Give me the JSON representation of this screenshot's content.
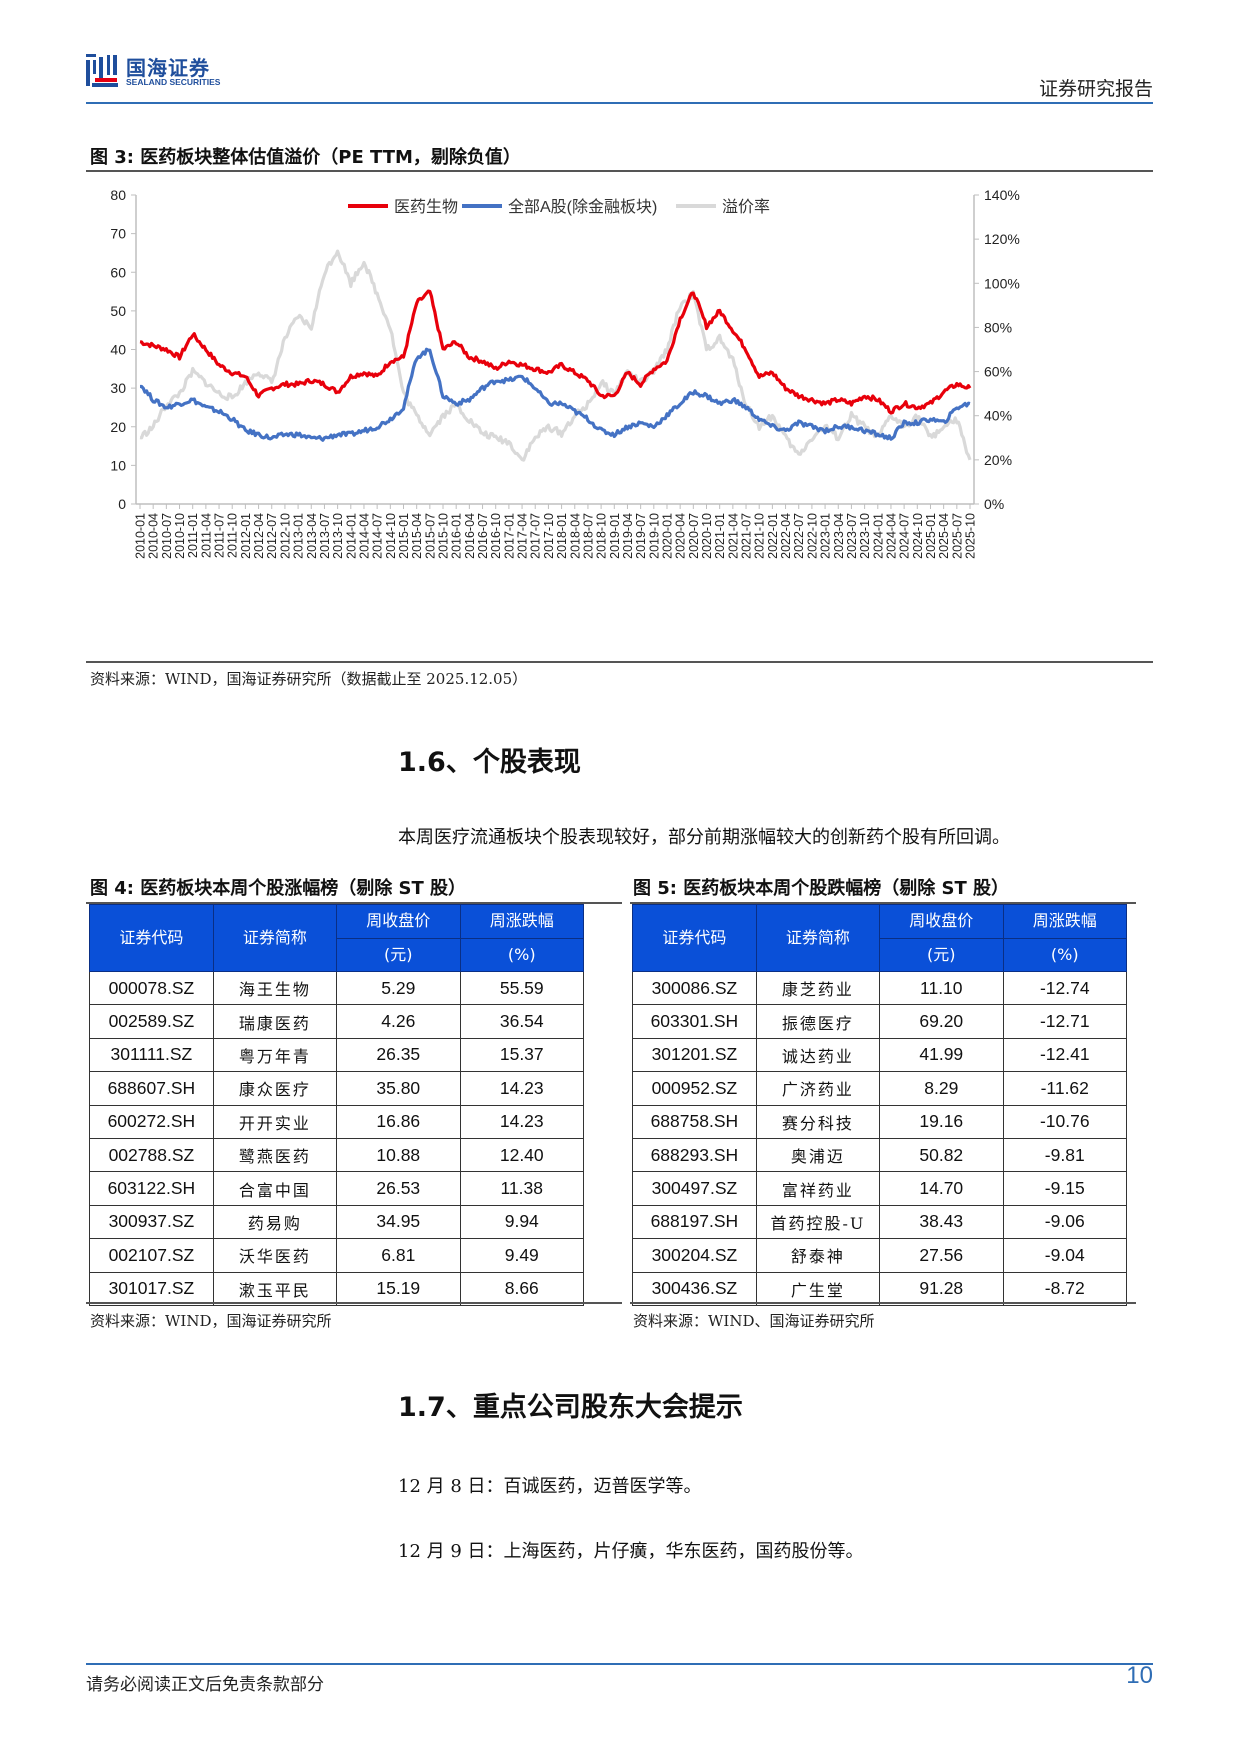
{
  "header": {
    "logo_cn": "国海证券",
    "logo_en": "SEALAND SECURITIES",
    "report_type": "证券研究报告",
    "brand_color": "#1f4e9c",
    "rule_color": "#2f6db5"
  },
  "figure3": {
    "title": "图 3:  医药板块整体估值溢价（PE TTM，剔除负值）",
    "source": "资料来源：WIND，国海证券研究所（数据截止至 2025.12.05）"
  },
  "chart_data": {
    "type": "line",
    "title": "医药板块整体估值溢价（PE TTM，剔除负值）",
    "xlabel": "",
    "ylabel_left": "PE TTM",
    "ylabel_right": "溢价率",
    "ylim_left": [
      0,
      80
    ],
    "ylim_right": [
      0,
      1.4
    ],
    "yticks_left": [
      "0",
      "10",
      "20",
      "30",
      "40",
      "50",
      "60",
      "70",
      "80"
    ],
    "yticks_right": [
      "0%",
      "20%",
      "40%",
      "60%",
      "80%",
      "100%",
      "120%",
      "140%"
    ],
    "grid": false,
    "legend_position": "top-center",
    "x": [
      "2010-01",
      "2010-04",
      "2010-07",
      "2010-10",
      "2011-01",
      "2011-04",
      "2011-07",
      "2011-10",
      "2012-01",
      "2012-04",
      "2012-07",
      "2012-10",
      "2013-01",
      "2013-04",
      "2013-07",
      "2013-10",
      "2014-01",
      "2014-04",
      "2014-07",
      "2014-10",
      "2015-01",
      "2015-04",
      "2015-07",
      "2015-10",
      "2016-01",
      "2016-04",
      "2016-07",
      "2016-10",
      "2017-01",
      "2017-04",
      "2017-07",
      "2017-10",
      "2018-01",
      "2018-04",
      "2018-07",
      "2018-10",
      "2019-01",
      "2019-04",
      "2019-07",
      "2019-10",
      "2020-01",
      "2020-04",
      "2020-07",
      "2020-10",
      "2021-01",
      "2021-04",
      "2021-07",
      "2021-10",
      "2022-01",
      "2022-04",
      "2022-07",
      "2022-10",
      "2023-01",
      "2023-04",
      "2023-07",
      "2023-10",
      "2024-01",
      "2024-04",
      "2024-07",
      "2024-10",
      "2025-01",
      "2025-04",
      "2025-07",
      "2025-10"
    ],
    "series": [
      {
        "name": "医药生物",
        "axis": "left",
        "color": "#e8000b",
        "values": [
          42,
          41,
          40,
          38,
          44,
          40,
          36,
          34,
          33,
          28,
          30,
          31,
          31,
          32,
          31,
          29,
          33,
          34,
          33,
          37,
          38,
          52,
          55,
          40,
          42,
          38,
          37,
          35,
          37,
          36,
          35,
          34,
          36,
          34,
          32,
          28,
          28,
          34,
          31,
          35,
          37,
          48,
          55,
          46,
          50,
          45,
          40,
          33,
          34,
          30,
          28,
          27,
          26,
          27,
          26,
          28,
          27,
          24,
          26,
          25,
          26,
          29,
          31,
          30
        ]
      },
      {
        "name": "全部A股(除金融板块)",
        "axis": "left",
        "color": "#4472c4",
        "values": [
          31,
          27,
          25,
          26,
          27,
          25,
          24,
          22,
          19,
          18,
          17,
          18,
          18,
          17,
          17,
          18,
          18,
          19,
          20,
          22,
          25,
          38,
          40,
          28,
          26,
          27,
          30,
          32,
          32,
          33,
          30,
          26,
          26,
          24,
          22,
          19,
          18,
          20,
          21,
          20,
          23,
          26,
          29,
          28,
          26,
          27,
          25,
          22,
          20,
          19,
          21,
          20,
          19,
          20,
          20,
          19,
          18,
          17,
          21,
          21,
          22,
          21,
          25,
          26
        ]
      },
      {
        "name": "溢价率",
        "axis": "right",
        "color": "#d9d9d9",
        "values": [
          0.3,
          0.35,
          0.45,
          0.5,
          0.6,
          0.55,
          0.5,
          0.48,
          0.55,
          0.6,
          0.55,
          0.75,
          0.85,
          0.8,
          1.05,
          1.15,
          1.0,
          1.1,
          0.95,
          0.8,
          0.5,
          0.4,
          0.32,
          0.4,
          0.45,
          0.38,
          0.32,
          0.3,
          0.28,
          0.2,
          0.3,
          0.35,
          0.32,
          0.4,
          0.45,
          0.55,
          0.5,
          0.6,
          0.55,
          0.6,
          0.7,
          0.9,
          0.95,
          0.7,
          0.75,
          0.65,
          0.45,
          0.35,
          0.4,
          0.3,
          0.22,
          0.3,
          0.35,
          0.3,
          0.4,
          0.35,
          0.3,
          0.4,
          0.35,
          0.4,
          0.3,
          0.35,
          0.38,
          0.2
        ]
      }
    ]
  },
  "section_1_6": {
    "heading": "1.6、个股表现",
    "paragraph": "本周医疗流通板块个股表现较好，部分前期涨幅较大的创新药个股有所回调。"
  },
  "figure4": {
    "title": "图 4:  医药板块本周个股涨幅榜（剔除 ST 股）",
    "headers": [
      "证券代码",
      "证券简称",
      "周收盘价",
      "(元)",
      "周涨跌幅",
      "(%)"
    ],
    "rows": [
      [
        "000078.SZ",
        "海王生物",
        "5.29",
        "55.59"
      ],
      [
        "002589.SZ",
        "瑞康医药",
        "4.26",
        "36.54"
      ],
      [
        "301111.SZ",
        "粤万年青",
        "26.35",
        "15.37"
      ],
      [
        "688607.SH",
        "康众医疗",
        "35.80",
        "14.23"
      ],
      [
        "600272.SH",
        "开开实业",
        "16.86",
        "14.23"
      ],
      [
        "002788.SZ",
        "鹭燕医药",
        "10.88",
        "12.40"
      ],
      [
        "603122.SH",
        "合富中国",
        "26.53",
        "11.38"
      ],
      [
        "300937.SZ",
        "药易购",
        "34.95",
        "9.94"
      ],
      [
        "002107.SZ",
        "沃华医药",
        "6.81",
        "9.49"
      ],
      [
        "301017.SZ",
        "漱玉平民",
        "15.19",
        "8.66"
      ]
    ],
    "source": "资料来源：WIND，国海证券研究所"
  },
  "figure5": {
    "title": "图 5:  医药板块本周个股跌幅榜（剔除 ST 股）",
    "headers": [
      "证券代码",
      "证券简称",
      "周收盘价",
      "(元)",
      "周涨跌幅",
      "(%)"
    ],
    "rows": [
      [
        "300086.SZ",
        "康芝药业",
        "11.10",
        "-12.74"
      ],
      [
        "603301.SH",
        "振德医疗",
        "69.20",
        "-12.71"
      ],
      [
        "301201.SZ",
        "诚达药业",
        "41.99",
        "-12.41"
      ],
      [
        "000952.SZ",
        "广济药业",
        "8.29",
        "-11.62"
      ],
      [
        "688758.SH",
        "赛分科技",
        "19.16",
        "-10.76"
      ],
      [
        "688293.SH",
        "奥浦迈",
        "50.82",
        "-9.81"
      ],
      [
        "300497.SZ",
        "富祥药业",
        "14.70",
        "-9.15"
      ],
      [
        "688197.SH",
        "首药控股-U",
        "38.43",
        "-9.06"
      ],
      [
        "300204.SZ",
        "舒泰神",
        "27.56",
        "-9.04"
      ],
      [
        "300436.SZ",
        "广生堂",
        "91.28",
        "-8.72"
      ]
    ],
    "source": "资料来源：WIND、国海证券研究所"
  },
  "table_header_color": "#0a50d8",
  "section_1_7": {
    "heading": "1.7、重点公司股东大会提示",
    "items": [
      "12 月 8 日：百诚医药，迈普医学等。",
      "12 月 9 日：上海医药，片仔癀，华东医药，国药股份等。"
    ]
  },
  "footer": {
    "disclaimer": "请务必阅读正文后免责条款部分",
    "page_number": "10"
  }
}
